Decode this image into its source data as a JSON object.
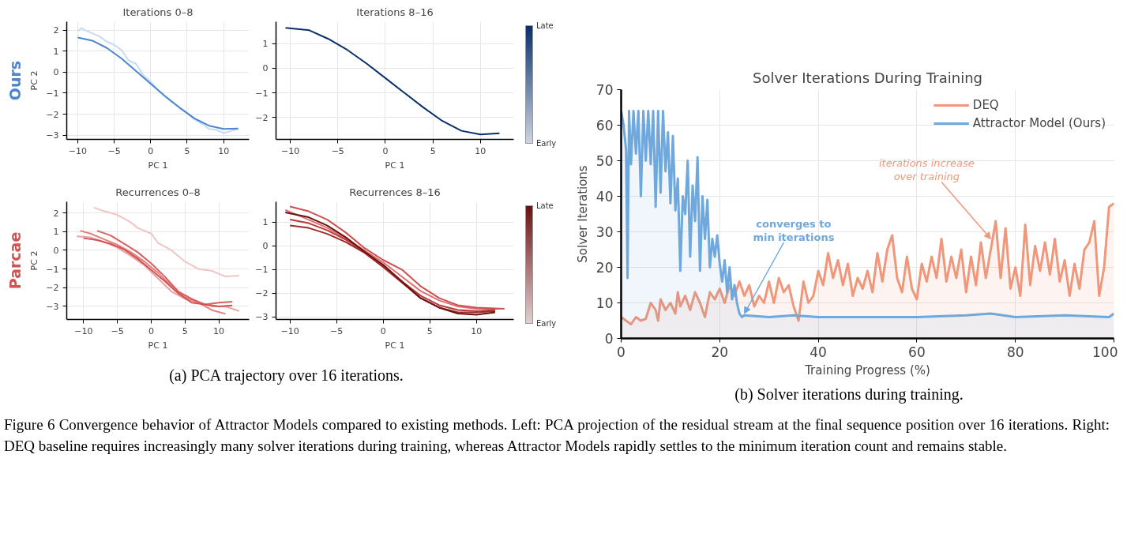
{
  "chart_data": [
    {
      "type": "line",
      "title": "Iterations 0–8",
      "xlabel": "PC 1",
      "ylabel": "PC 2",
      "annotations": [
        "Ours"
      ],
      "xlim": [
        -11.5,
        13.5
      ],
      "ylim": [
        -3.2,
        2.4
      ],
      "xticks": [
        -10,
        -5,
        0,
        5,
        10
      ],
      "yticks": [
        -3,
        -2,
        -1,
        0,
        1,
        2
      ],
      "grid": true,
      "legend": false,
      "series": [
        {
          "color": "#c6dbef",
          "x": [
            -10,
            -9.5,
            -9,
            -8,
            -7,
            -6,
            -5,
            -4,
            -3,
            -2,
            -1,
            0,
            1,
            2,
            3,
            4,
            5,
            6,
            7,
            8,
            9,
            10,
            11,
            12
          ],
          "values": [
            1.95,
            2.1,
            2.0,
            1.85,
            1.7,
            1.45,
            1.3,
            1.05,
            0.55,
            0.4,
            -0.15,
            -0.45,
            -0.85,
            -1.15,
            -1.45,
            -1.7,
            -1.95,
            -2.25,
            -2.45,
            -2.7,
            -2.75,
            -2.9,
            -2.8,
            -2.7
          ]
        },
        {
          "color": "#4a86d0",
          "x": [
            -10,
            -8,
            -6,
            -4,
            -2,
            0,
            2,
            4,
            6,
            8,
            10,
            12
          ],
          "values": [
            1.65,
            1.5,
            1.15,
            0.65,
            0.05,
            -0.55,
            -1.15,
            -1.7,
            -2.2,
            -2.55,
            -2.7,
            -2.68
          ]
        }
      ]
    },
    {
      "type": "line",
      "title": "Iterations 8–16",
      "xlabel": "PC 1",
      "annotations": [
        "Late",
        "Early"
      ],
      "xlim": [
        -11.5,
        13.5
      ],
      "ylim": [
        -2.9,
        1.9
      ],
      "xticks": [
        -10,
        -5,
        0,
        5,
        10
      ],
      "yticks": [
        -2,
        -1,
        0,
        1
      ],
      "grid": true,
      "legend": false,
      "series": [
        {
          "color": "#08306b",
          "x": [
            -10.5,
            -8,
            -6,
            -4,
            -2,
            0,
            2,
            4,
            6,
            8,
            10,
            12
          ],
          "values": [
            1.65,
            1.55,
            1.2,
            0.75,
            0.2,
            -0.4,
            -1.0,
            -1.6,
            -2.15,
            -2.55,
            -2.7,
            -2.65
          ]
        }
      ]
    },
    {
      "type": "line",
      "title": "Recurrences 0–8",
      "xlabel": "PC 1",
      "ylabel": "PC 2",
      "annotations": [
        "Parcae",
        "(a) PCA trajectory over 16 iterations."
      ],
      "xlim": [
        -12.5,
        14.5
      ],
      "ylim": [
        -3.7,
        2.6
      ],
      "xticks": [
        -10,
        -5,
        0,
        5,
        10
      ],
      "yticks": [
        -3,
        -2,
        -1,
        0,
        1,
        2
      ],
      "grid": true,
      "legend": false,
      "series": [
        {
          "color": "#f2c4c4",
          "x": [
            -8.5,
            -7,
            -5,
            -3,
            -2,
            0,
            1,
            3,
            5,
            7,
            9,
            11,
            13
          ],
          "values": [
            2.3,
            2.1,
            1.9,
            1.5,
            1.2,
            0.9,
            0.4,
            0.0,
            -0.6,
            -1.0,
            -1.1,
            -1.4,
            -1.35
          ]
        },
        {
          "color": "#eaa3a3",
          "x": [
            -11,
            -9,
            -7,
            -5,
            -3,
            -1,
            1,
            3,
            5,
            7,
            9,
            11,
            13
          ],
          "values": [
            0.75,
            0.7,
            0.45,
            0.15,
            -0.3,
            -0.8,
            -1.5,
            -2.2,
            -2.6,
            -2.8,
            -3.0,
            -3.0,
            -3.25
          ]
        },
        {
          "color": "#e08080",
          "x": [
            -10.5,
            -9,
            -7,
            -5,
            -3,
            -1,
            1,
            3,
            5,
            7,
            9,
            11
          ],
          "values": [
            1.05,
            0.9,
            0.6,
            0.3,
            -0.1,
            -0.6,
            -1.2,
            -1.9,
            -2.5,
            -2.8,
            -3.2,
            -3.4
          ]
        },
        {
          "color": "#d96060",
          "x": [
            -8,
            -6,
            -4,
            -2,
            0,
            2,
            4,
            6,
            8,
            10,
            12
          ],
          "values": [
            1.05,
            0.8,
            0.35,
            -0.1,
            -0.7,
            -1.4,
            -2.2,
            -2.6,
            -2.9,
            -2.8,
            -2.75
          ]
        },
        {
          "color": "#d35353",
          "x": [
            -10,
            -8,
            -6,
            -4,
            -2,
            0,
            2,
            4,
            6,
            8,
            10,
            12
          ],
          "values": [
            0.65,
            0.55,
            0.35,
            0.05,
            -0.45,
            -1.05,
            -1.65,
            -2.3,
            -2.8,
            -2.9,
            -3.0,
            -2.95
          ]
        }
      ]
    },
    {
      "type": "line",
      "title": "Recurrences 8–16",
      "xlabel": "PC 1",
      "annotations": [
        "Late",
        "Early"
      ],
      "xlim": [
        -11.5,
        14
      ],
      "ylim": [
        -3.1,
        1.85
      ],
      "xticks": [
        -10,
        -5,
        0,
        5,
        10
      ],
      "yticks": [
        -3,
        -2,
        -1,
        0,
        1
      ],
      "grid": true,
      "legend": false,
      "series": [
        {
          "color": "#e07070",
          "x": [
            -10.5,
            -8,
            -6,
            -4,
            -2,
            0,
            2,
            4,
            6,
            8,
            10,
            12.5
          ],
          "values": [
            1.5,
            1.1,
            0.75,
            0.3,
            -0.2,
            -0.7,
            -1.3,
            -1.9,
            -2.3,
            -2.55,
            -2.65,
            -2.65
          ]
        },
        {
          "color": "#cf5050",
          "x": [
            -10,
            -8,
            -6,
            -4,
            -2,
            0,
            2,
            4,
            6,
            8,
            10,
            13
          ],
          "values": [
            1.65,
            1.45,
            1.1,
            0.55,
            -0.1,
            -0.6,
            -1.0,
            -1.7,
            -2.2,
            -2.5,
            -2.6,
            -2.65
          ]
        },
        {
          "color": "#b73a3a",
          "x": [
            -10,
            -8,
            -6,
            -4,
            -2,
            0,
            2,
            4,
            6,
            8,
            10,
            12
          ],
          "values": [
            1.1,
            0.95,
            0.65,
            0.25,
            -0.25,
            -0.85,
            -1.5,
            -2.1,
            -2.5,
            -2.7,
            -2.75,
            -2.7
          ]
        },
        {
          "color": "#9e2a2a",
          "x": [
            -10,
            -8,
            -6,
            -4,
            -2,
            0,
            2,
            4,
            6,
            8,
            10,
            12
          ],
          "values": [
            0.85,
            0.75,
            0.5,
            0.15,
            -0.3,
            -0.9,
            -1.55,
            -2.2,
            -2.6,
            -2.8,
            -2.8,
            -2.75
          ]
        },
        {
          "color": "#6b1212",
          "x": [
            -10.5,
            -8,
            -6,
            -4,
            -2,
            0,
            2,
            4,
            6,
            8,
            10,
            12
          ],
          "values": [
            1.4,
            1.2,
            0.85,
            0.35,
            -0.25,
            -0.8,
            -1.5,
            -2.2,
            -2.6,
            -2.85,
            -2.9,
            -2.8
          ]
        }
      ]
    },
    {
      "type": "area",
      "title": "Solver Iterations During Training",
      "xlabel": "Training Progress (%)",
      "ylabel": "Solver Iterations",
      "xlim": [
        0,
        100
      ],
      "ylim": [
        0,
        70
      ],
      "xticks": [
        0,
        20,
        40,
        60,
        80,
        100
      ],
      "yticks": [
        0,
        10,
        20,
        30,
        40,
        50,
        60,
        70
      ],
      "grid": true,
      "legend": "top right",
      "annotations": [
        {
          "text": "converges to\nmin iterations",
          "x": 25,
          "y": 7
        },
        {
          "text": "iterations increase\nover training",
          "x": 75,
          "y": 28
        },
        "(b) Solver iterations during training.",
        "Figure 6 Convergence behavior of Attractor Models compared to existing methods. Left: PCA projection of the residual stream at the final sequence position over 16 iterations. Right: DEQ baseline requires increasingly many solver iterations during training, whereas Attractor Models rapidly settles to the minimum iteration count and remains stable."
      ],
      "series": [
        {
          "name": "DEQ",
          "color": "#f0967a",
          "x": [
            0,
            1,
            2,
            3,
            4,
            5,
            6,
            7,
            7.5,
            8,
            9,
            10,
            11,
            11.5,
            12,
            13,
            14,
            15,
            16,
            17,
            18,
            19,
            20,
            21,
            22,
            23,
            24,
            25,
            26,
            27,
            28,
            29,
            30,
            31,
            32,
            33,
            34,
            35,
            36,
            37,
            38,
            39,
            40,
            41,
            42,
            43,
            44,
            45,
            46,
            47,
            48,
            49,
            50,
            51,
            52,
            53,
            54,
            55,
            56,
            57,
            58,
            59,
            60,
            61,
            62,
            63,
            64,
            65,
            66,
            67,
            68,
            69,
            70,
            71,
            72,
            73,
            74,
            75,
            76,
            77,
            78,
            79,
            80,
            81,
            82,
            83,
            84,
            85,
            86,
            87,
            88,
            89,
            90,
            91,
            92,
            93,
            94,
            95,
            96,
            97,
            98,
            99,
            100
          ],
          "values": [
            6,
            5,
            4,
            6,
            5,
            5.5,
            10,
            8,
            5,
            11,
            8,
            10,
            7,
            13,
            9,
            12,
            8,
            13,
            10,
            6,
            13,
            11,
            14,
            10,
            15,
            12,
            16,
            12,
            15,
            9,
            12,
            10,
            16,
            10,
            17,
            13,
            15,
            9,
            5,
            16,
            10,
            12,
            19,
            15,
            24,
            17,
            22,
            15,
            21,
            12,
            17,
            14,
            19,
            13,
            24,
            16,
            25,
            29,
            17,
            13,
            23,
            14,
            11,
            21,
            16,
            23,
            17,
            28,
            16,
            23,
            17,
            25,
            13,
            23,
            15,
            27,
            17,
            25,
            33,
            17,
            31,
            14,
            20,
            12,
            32,
            15,
            26,
            19,
            27,
            18,
            28,
            16,
            22,
            12,
            21,
            14,
            25,
            27,
            33,
            12,
            20,
            37,
            38
          ]
        },
        {
          "name": "Attractor Model (Ours)",
          "color": "#6fa8dc",
          "x": [
            0,
            0.5,
            1,
            1.3,
            1.6,
            2,
            2.5,
            3,
            3.5,
            4,
            4.5,
            5,
            5.5,
            6,
            6.5,
            7,
            7.5,
            8,
            8.5,
            9,
            9.5,
            10,
            10.5,
            11,
            11.5,
            12,
            12.5,
            13,
            13.5,
            14,
            14.5,
            15,
            15.5,
            16,
            16.5,
            17,
            17.5,
            18,
            18.5,
            19,
            19.5,
            20,
            20.5,
            21,
            21.5,
            22,
            22.5,
            23,
            23.5,
            24,
            24.5,
            25,
            30,
            35,
            40,
            50,
            60,
            70,
            75,
            80,
            90,
            99,
            100
          ],
          "values": [
            64,
            60,
            53,
            17,
            64,
            49,
            64,
            52,
            64,
            40,
            64,
            50,
            64,
            49,
            64,
            37,
            64,
            41,
            64,
            47,
            58,
            38,
            57,
            36,
            45,
            19,
            40,
            35,
            50,
            23,
            43,
            33,
            51,
            19,
            40,
            28,
            39,
            20,
            28,
            23,
            29,
            21,
            16,
            22,
            13,
            20,
            11,
            15,
            10,
            7,
            6,
            6.5,
            6,
            6.5,
            6,
            6,
            6,
            6.5,
            7,
            6,
            6.5,
            6,
            7
          ]
        }
      ]
    }
  ]
}
